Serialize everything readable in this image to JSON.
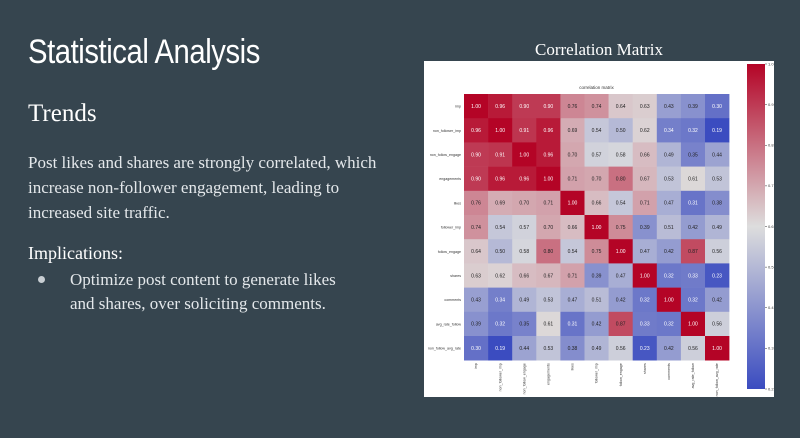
{
  "slide": {
    "title": "Statistical Analysis",
    "trends_heading": "Trends",
    "trends_text": "Post likes and shares are strongly correlated, which increase non-follower engagement, leading to increased site traffic.",
    "implications_heading": "Implications:",
    "bullets": [
      "Optimize post content to generate likes and shares, over soliciting comments."
    ]
  },
  "chart_caption": "Correlation Matrix",
  "chart_data": {
    "type": "heatmap",
    "title": "correlation matrix",
    "rows": [
      "imp",
      "non_follower_imp",
      "non_follow_engage",
      "engagements",
      "likes",
      "follower_imp",
      "follow_engage",
      "shares",
      "comments",
      "avg_rate_follow",
      "non_follow_avg_rate"
    ],
    "columns": [
      "imp",
      "non_follower_imp",
      "non_follow_engage",
      "engagements",
      "likes",
      "follower_imp",
      "follow_engage",
      "shares",
      "comments",
      "avg_rate_follow",
      "non_follow_avg_rate"
    ],
    "values": [
      [
        1.0,
        0.96,
        0.9,
        0.9,
        0.76,
        0.74,
        0.64,
        0.63,
        0.43,
        0.39,
        0.3
      ],
      [
        0.96,
        1.0,
        0.91,
        0.96,
        0.69,
        0.54,
        0.5,
        0.62,
        0.34,
        0.32,
        0.19
      ],
      [
        0.9,
        0.91,
        1.0,
        0.96,
        0.7,
        0.57,
        0.58,
        0.66,
        0.49,
        0.35,
        0.44
      ],
      [
        0.9,
        0.96,
        0.96,
        1.0,
        0.71,
        0.7,
        0.8,
        0.67,
        0.53,
        0.61,
        0.53
      ],
      [
        0.76,
        0.69,
        0.7,
        0.71,
        1.0,
        0.66,
        0.54,
        0.71,
        0.47,
        0.31,
        0.38
      ],
      [
        0.74,
        0.54,
        0.57,
        0.7,
        0.66,
        1.0,
        0.75,
        0.39,
        0.51,
        0.42,
        0.49
      ],
      [
        0.64,
        0.5,
        0.58,
        0.8,
        0.54,
        0.75,
        1.0,
        0.47,
        0.42,
        0.87,
        0.56
      ],
      [
        0.63,
        0.62,
        0.66,
        0.67,
        0.71,
        0.39,
        0.47,
        1.0,
        0.32,
        0.33,
        0.23
      ],
      [
        0.43,
        0.34,
        0.49,
        0.53,
        0.47,
        0.51,
        0.42,
        0.32,
        1.0,
        0.32,
        0.42
      ],
      [
        0.39,
        0.32,
        0.35,
        0.61,
        0.31,
        0.42,
        0.87,
        0.33,
        0.32,
        1.0,
        0.56
      ],
      [
        0.3,
        0.19,
        0.44,
        0.53,
        0.38,
        0.49,
        0.56,
        0.23,
        0.42,
        0.56,
        1.0
      ]
    ],
    "colorbar": {
      "min": 0.2,
      "max": 1.0,
      "ticks": [
        "1.0",
        "0.9",
        "0.8",
        "0.7",
        "0.6",
        "0.5",
        "0.4",
        "0.3",
        "0.2"
      ]
    },
    "colormap": "coolwarm",
    "colors": {
      "low": "#3b4cc0",
      "mid": "#dddddd",
      "high": "#b40426"
    }
  }
}
